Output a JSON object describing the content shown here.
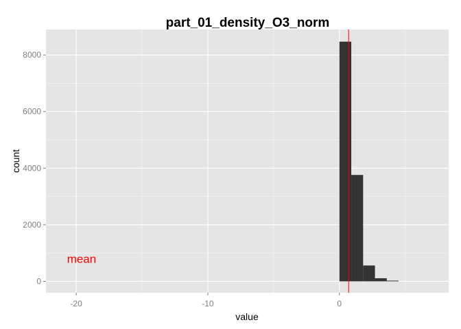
{
  "chart_data": {
    "type": "bar",
    "title": "part_01_density_O3_norm",
    "xlabel": "value",
    "ylabel": "count",
    "xlim": [
      -22.3,
      8.3
    ],
    "ylim": [
      -400,
      8900
    ],
    "x_ticks": [
      -20,
      -10,
      0
    ],
    "y_ticks": [
      0,
      2000,
      4000,
      6000,
      8000
    ],
    "grid": true,
    "bin_width": 0.9,
    "bins": [
      {
        "x0": 0.0,
        "x1": 0.9,
        "count": 8470
      },
      {
        "x0": 0.9,
        "x1": 1.8,
        "count": 3760
      },
      {
        "x0": 1.8,
        "x1": 2.7,
        "count": 560
      },
      {
        "x0": 2.7,
        "x1": 3.6,
        "count": 110
      },
      {
        "x0": 3.6,
        "x1": 4.5,
        "count": 25
      }
    ],
    "bar_color": "#333333",
    "mean_line": {
      "x": 0.7,
      "color": "#ff0000"
    },
    "annotation": {
      "text": "mean",
      "x": -20.7,
      "y": 800,
      "color": "#ff0000"
    },
    "panel_background": "#e5e5e5",
    "grid_color": "#ffffff"
  }
}
